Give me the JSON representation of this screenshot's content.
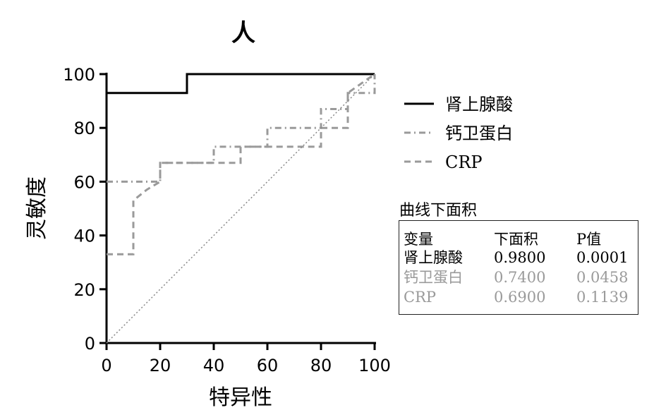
{
  "chart_data": {
    "type": "line",
    "title": "人",
    "xlabel": "特异性",
    "ylabel": "灵敏度",
    "xlim": [
      0,
      100
    ],
    "ylim": [
      0,
      100
    ],
    "xticks": [
      "0",
      "20",
      "40",
      "60",
      "80",
      "100"
    ],
    "yticks": [
      "0",
      "20",
      "40",
      "60",
      "80",
      "100"
    ],
    "legend_position": "right",
    "series": [
      {
        "name": "肾上腺酸",
        "color": "#000000",
        "style": "solid",
        "points": [
          [
            0,
            93
          ],
          [
            30,
            93
          ],
          [
            30,
            100
          ],
          [
            100,
            100
          ]
        ]
      },
      {
        "name": "钙卫蛋白",
        "color": "#9a9a9a",
        "style": "dashdot",
        "points": [
          [
            0,
            60
          ],
          [
            20,
            60
          ],
          [
            20,
            67
          ],
          [
            40,
            67
          ],
          [
            40,
            73
          ],
          [
            60,
            73
          ],
          [
            60,
            80
          ],
          [
            80,
            80
          ],
          [
            80,
            87
          ],
          [
            90,
            87
          ],
          [
            90,
            93
          ],
          [
            100,
            93
          ],
          [
            100,
            100
          ]
        ]
      },
      {
        "name": "CRP",
        "color": "#9a9a9a",
        "style": "dashed",
        "points": [
          [
            0,
            33
          ],
          [
            10,
            33
          ],
          [
            10,
            53
          ],
          [
            15,
            57
          ],
          [
            20,
            60
          ],
          [
            20,
            67
          ],
          [
            50,
            67
          ],
          [
            50,
            73
          ],
          [
            80,
            73
          ],
          [
            80,
            80
          ],
          [
            90,
            80
          ],
          [
            90,
            93
          ],
          [
            100,
            100
          ]
        ]
      },
      {
        "name": "",
        "color": "#888888",
        "style": "dotted",
        "points": [
          [
            0,
            0
          ],
          [
            100,
            100
          ]
        ]
      }
    ],
    "auc_table": {
      "title": "曲线下面积",
      "headers": [
        "变量",
        "下面积",
        "P值"
      ],
      "rows": [
        {
          "name": "肾上腺酸",
          "auc": "0.9800",
          "p": "0.0001",
          "color": "#000000"
        },
        {
          "name": "钙卫蛋白",
          "auc": "0.7400",
          "p": "0.0458",
          "color": "#9a9a9a"
        },
        {
          "name": "CRP",
          "auc": "0.6900",
          "p": "0.1139",
          "color": "#9a9a9a"
        }
      ]
    }
  }
}
